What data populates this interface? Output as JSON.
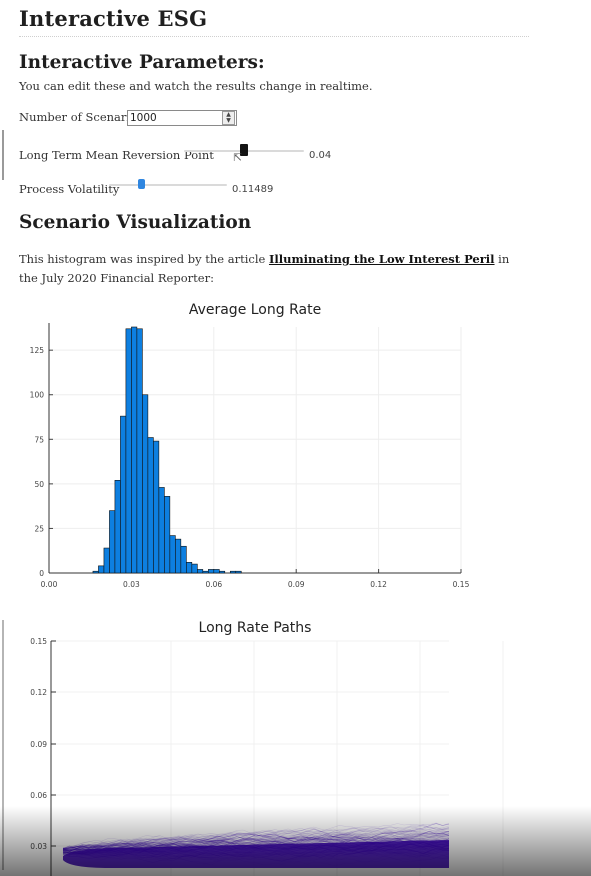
{
  "title": "Interactive ESG",
  "params": {
    "heading": "Interactive Parameters:",
    "intro": "You can edit these and watch the results change in realtime.",
    "scenarios_label": "Number of Scenarios:",
    "scenarios_value": "1000",
    "reversion_label": "Long Term Mean Reversion Point",
    "reversion_value": "0.04",
    "reversion_fraction": 0.5,
    "volatility_label": "Process Volatility",
    "volatility_value": "0.11489",
    "volatility_fraction": 0.27
  },
  "viz": {
    "heading": "Scenario Visualization",
    "text_before": "This histogram was inspired by the article ",
    "link_text": "Illuminating the Low Interest Peril",
    "text_after": " in the July 2020 Financial Reporter:"
  },
  "colors": {
    "bar": "#0d7fe0",
    "path": "#3a00b8",
    "text": "#1f1f1f"
  },
  "chart_data": [
    {
      "type": "bar",
      "title": "Average Long Rate",
      "xlim": [
        0,
        0.15
      ],
      "ylim": [
        0,
        138
      ],
      "xticks": [
        "0.00",
        "0.03",
        "0.06",
        "0.09",
        "0.12",
        "0.15"
      ],
      "yticks": [
        "0",
        "25",
        "50",
        "75",
        "100",
        "125"
      ],
      "bin_width": 0.002,
      "bins_start": [
        0.016,
        0.018,
        0.02,
        0.022,
        0.024,
        0.026,
        0.028,
        0.03,
        0.032,
        0.034,
        0.036,
        0.038,
        0.04,
        0.042,
        0.044,
        0.046,
        0.048,
        0.05,
        0.052,
        0.054,
        0.056,
        0.058,
        0.06,
        0.062,
        0.064,
        0.066,
        0.068
      ],
      "values": [
        1,
        4,
        14,
        35,
        52,
        88,
        137,
        138,
        137,
        100,
        76,
        74,
        48,
        43,
        21,
        19,
        15,
        6,
        5,
        2,
        1,
        2,
        2,
        1,
        0,
        1,
        1
      ]
    },
    {
      "type": "line",
      "title": "Long Rate Paths",
      "ylim": [
        0.02,
        0.15
      ],
      "yticks": [
        "0.15",
        "0.12",
        "0.09",
        "0.06",
        "0.03"
      ]
    }
  ]
}
